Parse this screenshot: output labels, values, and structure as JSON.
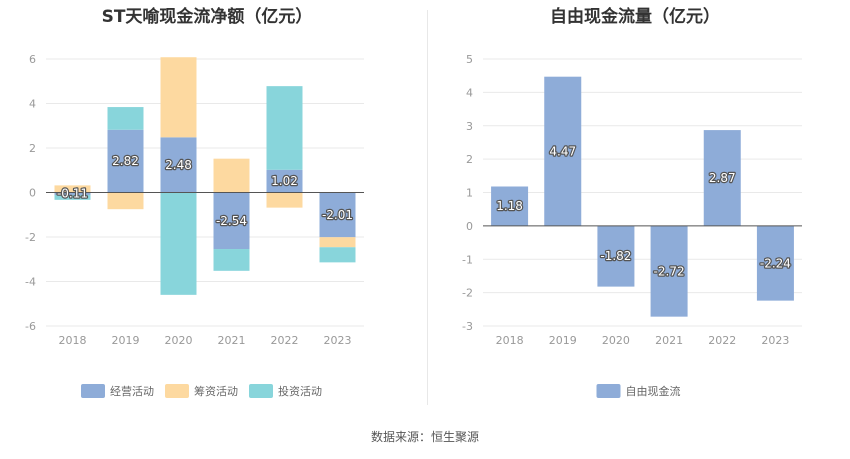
{
  "source": "数据来源：恒生聚源",
  "chart_data": [
    {
      "type": "bar",
      "stacked": true,
      "title": "ST天喻现金流净额（亿元）",
      "categories": [
        "2018",
        "2019",
        "2020",
        "2021",
        "2022",
        "2023"
      ],
      "ylim": [
        -6,
        6
      ],
      "yticks": [
        6,
        4,
        2,
        0,
        -2,
        -4,
        -6
      ],
      "grid": true,
      "legend_position": "bottom",
      "series": [
        {
          "name": "经营活动",
          "color": "#8eacd8",
          "values": [
            -0.11,
            2.82,
            2.48,
            -2.54,
            1.02,
            -2.01
          ],
          "labels": [
            "-0.11",
            "2.82",
            "2.48",
            "-2.54",
            "1.02",
            "-2.01"
          ]
        },
        {
          "name": "筹资活动",
          "color": "#fdd9a0",
          "values": [
            0.32,
            -0.75,
            3.6,
            1.52,
            -0.68,
            -0.45
          ]
        },
        {
          "name": "投资活动",
          "color": "#88d5db",
          "values": [
            -0.22,
            1.02,
            -4.6,
            -0.98,
            3.76,
            -0.68
          ]
        }
      ]
    },
    {
      "type": "bar",
      "title": "自由现金流量（亿元）",
      "categories": [
        "2018",
        "2019",
        "2020",
        "2021",
        "2022",
        "2023"
      ],
      "ylim": [
        -3,
        5
      ],
      "yticks": [
        5,
        4,
        3,
        2,
        1,
        0,
        -1,
        -2,
        -3
      ],
      "grid": true,
      "legend_position": "bottom",
      "series": [
        {
          "name": "自由现金流",
          "color": "#8eacd8",
          "values": [
            1.18,
            4.47,
            -1.82,
            -2.72,
            2.87,
            -2.24
          ],
          "labels": [
            "1.18",
            "4.47",
            "-1.82",
            "-2.72",
            "2.87",
            "-2.24"
          ]
        }
      ]
    }
  ]
}
